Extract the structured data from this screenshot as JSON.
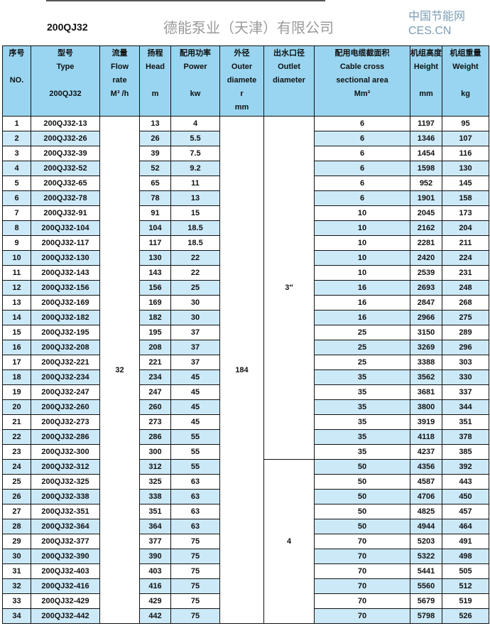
{
  "title": "200QJ32",
  "headers": [
    {
      "cn": "序号",
      "en": [
        "",
        "NO.",
        ""
      ]
    },
    {
      "cn": "型号",
      "en": [
        "Type",
        "",
        "200QJ32"
      ]
    },
    {
      "cn": "流量",
      "en": [
        "Flow",
        "rate",
        "M³ /h"
      ]
    },
    {
      "cn": "扬程",
      "en": [
        "Head",
        "",
        "m"
      ]
    },
    {
      "cn": "配用功率",
      "en": [
        "Power",
        "",
        "kw"
      ]
    },
    {
      "cn": "外径",
      "en": [
        "Outer",
        "diamete",
        "r",
        "mm"
      ]
    },
    {
      "cn": "出水口径",
      "en": [
        "Outlet",
        "diameter"
      ]
    },
    {
      "cn": "配用电缆截面积",
      "en": [
        "Cable cross",
        "sectional area",
        "Mm²"
      ]
    },
    {
      "cn": "机组高度",
      "en": [
        "Height",
        "",
        "mm"
      ]
    },
    {
      "cn": "机组重量",
      "en": [
        "Weight",
        "",
        "kg"
      ]
    }
  ],
  "flow_rate": "32",
  "outer_diameter": "184",
  "outlet_groups": [
    {
      "value": "3″",
      "rows": 23
    },
    {
      "value": "4",
      "rows": 11
    }
  ],
  "rows": [
    [
      "1",
      "200QJ32-13",
      "13",
      "4",
      "6",
      "1197",
      "95"
    ],
    [
      "2",
      "200QJ32-26",
      "26",
      "5.5",
      "6",
      "1346",
      "107"
    ],
    [
      "3",
      "200QJ32-39",
      "39",
      "7.5",
      "6",
      "1454",
      "116"
    ],
    [
      "4",
      "200QJ32-52",
      "52",
      "9.2",
      "6",
      "1598",
      "130"
    ],
    [
      "5",
      "200QJ32-65",
      "65",
      "11",
      "6",
      "952",
      "145"
    ],
    [
      "6",
      "200QJ32-78",
      "78",
      "13",
      "6",
      "1901",
      "158"
    ],
    [
      "7",
      "200QJ32-91",
      "91",
      "15",
      "10",
      "2045",
      "173"
    ],
    [
      "8",
      "200QJ32-104",
      "104",
      "18.5",
      "10",
      "2162",
      "204"
    ],
    [
      "9",
      "200QJ32-117",
      "117",
      "18.5",
      "10",
      "2281",
      "211"
    ],
    [
      "10",
      "200QJ32-130",
      "130",
      "22",
      "10",
      "2420",
      "224"
    ],
    [
      "11",
      "200QJ32-143",
      "143",
      "22",
      "10",
      "2539",
      "231"
    ],
    [
      "12",
      "200QJ32-156",
      "156",
      "25",
      "16",
      "2693",
      "248"
    ],
    [
      "13",
      "200QJ32-169",
      "169",
      "30",
      "16",
      "2847",
      "268"
    ],
    [
      "14",
      "200QJ32-182",
      "182",
      "30",
      "16",
      "2966",
      "275"
    ],
    [
      "15",
      "200QJ32-195",
      "195",
      "37",
      "25",
      "3150",
      "289"
    ],
    [
      "16",
      "200QJ32-208",
      "208",
      "37",
      "25",
      "3269",
      "296"
    ],
    [
      "17",
      "200QJ32-221",
      "221",
      "37",
      "25",
      "3388",
      "303"
    ],
    [
      "18",
      "200QJ32-234",
      "234",
      "45",
      "35",
      "3562",
      "330"
    ],
    [
      "19",
      "200QJ32-247",
      "247",
      "45",
      "35",
      "3681",
      "337"
    ],
    [
      "20",
      "200QJ32-260",
      "260",
      "45",
      "35",
      "3800",
      "344"
    ],
    [
      "21",
      "200QJ32-273",
      "273",
      "45",
      "35",
      "3919",
      "351"
    ],
    [
      "22",
      "200QJ32-286",
      "286",
      "55",
      "35",
      "4118",
      "378"
    ],
    [
      "23",
      "200QJ32-300",
      "300",
      "55",
      "35",
      "4237",
      "385"
    ],
    [
      "24",
      "200QJ32-312",
      "312",
      "55",
      "50",
      "4356",
      "392"
    ],
    [
      "25",
      "200QJ32-325",
      "325",
      "63",
      "50",
      "4587",
      "443"
    ],
    [
      "26",
      "200QJ32-338",
      "338",
      "63",
      "50",
      "4706",
      "450"
    ],
    [
      "27",
      "200QJ32-351",
      "351",
      "63",
      "50",
      "4825",
      "457"
    ],
    [
      "28",
      "200QJ32-364",
      "364",
      "63",
      "50",
      "4944",
      "464"
    ],
    [
      "29",
      "200QJ32-377",
      "377",
      "75",
      "70",
      "5203",
      "491"
    ],
    [
      "30",
      "200QJ32-390",
      "390",
      "75",
      "70",
      "5322",
      "498"
    ],
    [
      "31",
      "200QJ32-403",
      "403",
      "75",
      "70",
      "5441",
      "505"
    ],
    [
      "32",
      "200QJ32-416",
      "416",
      "75",
      "70",
      "5560",
      "512"
    ],
    [
      "33",
      "200QJ32-429",
      "429",
      "75",
      "70",
      "5679",
      "519"
    ],
    [
      "34",
      "200QJ32-442",
      "442",
      "75",
      "70",
      "5798",
      "526"
    ]
  ],
  "watermark": "德能泵业（天津）有限公司",
  "logo": {
    "cn": "中国节能网",
    "en": "CES.CN"
  },
  "colors": {
    "header": "#99d5f0",
    "alt_row": "#cce9f8"
  }
}
